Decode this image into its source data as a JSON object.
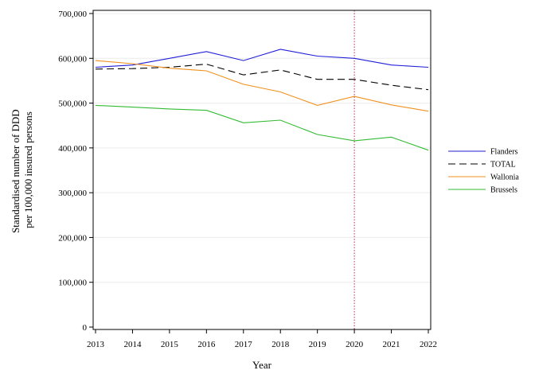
{
  "chart_data": {
    "type": "line",
    "title": "",
    "xlabel": "Year",
    "ylabel_lines": [
      "Standardised number of DDD",
      "per 100,000 insured persons"
    ],
    "x": [
      2013,
      2014,
      2015,
      2016,
      2017,
      2018,
      2019,
      2020,
      2021,
      2022
    ],
    "x_tick_labels": [
      "2013",
      "2014",
      "2015",
      "2016",
      "2017",
      "2018",
      "2019",
      "2020",
      "2021",
      "2022"
    ],
    "ylim": [
      0,
      700000
    ],
    "y_ticks": [
      0,
      100000,
      200000,
      300000,
      400000,
      500000,
      600000,
      700000
    ],
    "y_tick_labels": [
      "0",
      "100,000",
      "200,000",
      "300,000",
      "400,000",
      "500,000",
      "600,000",
      "700,000"
    ],
    "grid": "horizontal",
    "grid_color": "#ececec",
    "reference_line": {
      "x": 2020,
      "color": "#b03050",
      "style": "dotted"
    },
    "legend": {
      "placement": "right"
    },
    "series": [
      {
        "name": "Flanders",
        "color": "#1f1fd6",
        "dash": "solid",
        "values": [
          580000,
          585000,
          600000,
          615000,
          595000,
          620000,
          605000,
          600000,
          585000,
          580000
        ]
      },
      {
        "name": "TOTAL",
        "color": "#000000",
        "dash": "dashed",
        "values": [
          576000,
          577000,
          580000,
          587000,
          563000,
          574000,
          553000,
          553000,
          540000,
          530000
        ]
      },
      {
        "name": "Wallonia",
        "color": "#f0901c",
        "dash": "solid",
        "values": [
          595000,
          588000,
          578000,
          572000,
          542000,
          525000,
          495000,
          515000,
          496000,
          482000
        ]
      },
      {
        "name": "Brussels",
        "color": "#33bb33",
        "dash": "solid",
        "values": [
          495000,
          491000,
          487000,
          484000,
          456000,
          462000,
          430000,
          416000,
          424000,
          395000
        ]
      }
    ]
  }
}
